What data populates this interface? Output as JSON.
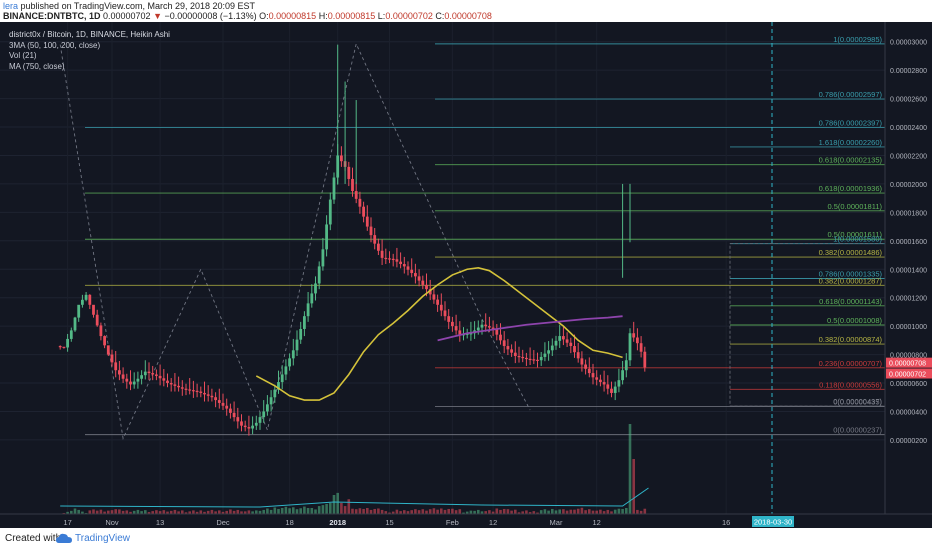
{
  "header": {
    "publisher": "lera",
    "published_text": "published on TradingView.com, March 29, 2018 20:09 EST",
    "symbol": "BINANCE:DNTBTC, 1D",
    "last": "0.00000702",
    "change_arrow": "▼",
    "change": "−0.00000008 (−1.13%)",
    "ohlc": [
      {
        "k": "O:",
        "v": "0.00000815"
      },
      {
        "k": "H:",
        "v": "0.00000815"
      },
      {
        "k": "L:",
        "v": "0.00000702"
      },
      {
        "k": "C:",
        "v": "0.00000708"
      }
    ]
  },
  "legend": {
    "title": "district0x / Bitcoin, 1D, BINANCE, Heikin Ashi",
    "lines": [
      "3MA (50, 100, 200, close)",
      "Vol (21)",
      "MA (750, close)"
    ]
  },
  "footer": {
    "created_with": "Created with",
    "brand": "TradingView"
  },
  "colors": {
    "background": "#131722",
    "up_candle": "#53b987",
    "down_candle": "#eb4d5c",
    "ma_yellow": "#d4c23a",
    "ma_purple": "#8e44ad",
    "fib_teal": "#3a9fae",
    "fib_green": "#5fb35b",
    "fib_yellow": "#b6b544",
    "fib_red": "#cc3b3b",
    "date_badge": "#2fb4c8"
  },
  "chart_data": {
    "type": "candlestick",
    "y_axis": {
      "ticks": [
        "0.00003000",
        "0.00002800",
        "0.00002600",
        "0.00002400",
        "0.00002200",
        "0.00002000",
        "0.00001800",
        "0.00001600",
        "0.00001400",
        "0.00001200",
        "0.00001000",
        "0.00000800",
        "0.00000600",
        "0.00000400",
        "0.00000200"
      ],
      "price_labels": [
        {
          "text": "0.00000708",
          "price": 7.08e-06,
          "color": "#eb4d5c"
        },
        {
          "text": "0.00000702",
          "price": 7.02e-06,
          "color": "#eb4d5c"
        }
      ]
    },
    "x_axis": {
      "ticks": [
        "17",
        "Nov",
        "13",
        "Dec",
        "18",
        "2018",
        "15",
        "Feb",
        "12",
        "Mar",
        "12",
        "16"
      ],
      "tick_days": [
        -12,
        0,
        13,
        30,
        48,
        61,
        75,
        92,
        103,
        120,
        131,
        166
      ],
      "date_badge": "2018-03-30"
    },
    "fib_levels": [
      {
        "label": "1(0.00002985)",
        "price": 2.985e-05,
        "group": "A"
      },
      {
        "label": "0.786(0.00002597)",
        "price": 2.597e-05,
        "group": "A"
      },
      {
        "label": "0.786(0.00002397)",
        "price": 2.397e-05,
        "group": "B"
      },
      {
        "label": "1.618(0.00002260)",
        "price": 2.26e-05,
        "group": "C"
      },
      {
        "label": "0.618(0.00002135)",
        "price": 2.135e-05,
        "group": "A"
      },
      {
        "label": "0.618(0.00001936)",
        "price": 1.936e-05,
        "group": "B"
      },
      {
        "label": "0.5(0.00001811)",
        "price": 1.811e-05,
        "group": "A"
      },
      {
        "label": "0.5(0.00001611)",
        "price": 1.611e-05,
        "group": "B"
      },
      {
        "label": "1(0.00001580)",
        "price": 1.58e-05,
        "group": "C"
      },
      {
        "label": "0.382(0.00001486)",
        "price": 1.486e-05,
        "group": "A"
      },
      {
        "label": "0.786(0.00001335)",
        "price": 1.335e-05,
        "group": "C"
      },
      {
        "label": "0.382(0.00001287)",
        "price": 1.287e-05,
        "group": "B"
      },
      {
        "label": "0.618(0.00001143)",
        "price": 1.143e-05,
        "group": "C"
      },
      {
        "label": "0.5(0.00001008)",
        "price": 1.008e-05,
        "group": "C"
      },
      {
        "label": "0.382(0.00000874)",
        "price": 8.74e-06,
        "group": "C"
      },
      {
        "label": "0.236(0.00000707)",
        "price": 7.07e-06,
        "group": "A"
      },
      {
        "label": "0.118(0.00000556)",
        "price": 5.56e-06,
        "group": "C"
      },
      {
        "label": "0(0.00000435)",
        "price": 4.35e-06,
        "group": "A"
      },
      {
        "label": "0(0.00000437)",
        "price": 4.37e-06,
        "group": "C"
      },
      {
        "label": "0(0.00000237)",
        "price": 2.37e-06,
        "group": "B"
      }
    ],
    "price_path": [
      [
        -14,
        8.6
      ],
      [
        -12,
        8.5
      ],
      [
        -10,
        9.7
      ],
      [
        -8,
        11.5
      ],
      [
        -6,
        12.2
      ],
      [
        -4,
        10.8
      ],
      [
        -2,
        9.3
      ],
      [
        0,
        8.0
      ],
      [
        2,
        6.9
      ],
      [
        4,
        6.3
      ],
      [
        6,
        5.9
      ],
      [
        8,
        6.3
      ],
      [
        10,
        6.8
      ],
      [
        13,
        6.5
      ],
      [
        16,
        6.0
      ],
      [
        20,
        5.6
      ],
      [
        24,
        5.4
      ],
      [
        28,
        5.0
      ],
      [
        30,
        4.6
      ],
      [
        32,
        4.2
      ],
      [
        34,
        3.6
      ],
      [
        36,
        3.0
      ],
      [
        38,
        2.8
      ],
      [
        40,
        3.2
      ],
      [
        42,
        4.0
      ],
      [
        44,
        5.0
      ],
      [
        47,
        6.6
      ],
      [
        50,
        8.3
      ],
      [
        52,
        9.8
      ],
      [
        54,
        11.6
      ],
      [
        56,
        13.0
      ],
      [
        58,
        15.4
      ],
      [
        60,
        18.9
      ],
      [
        62,
        22.0
      ],
      [
        64,
        21.2
      ],
      [
        66,
        19.5
      ],
      [
        68,
        18.4
      ],
      [
        70,
        17.0
      ],
      [
        72,
        15.8
      ],
      [
        74,
        14.8
      ],
      [
        77,
        14.7
      ],
      [
        80,
        14.2
      ],
      [
        83,
        13.5
      ],
      [
        86,
        12.6
      ],
      [
        89,
        11.5
      ],
      [
        92,
        10.3
      ],
      [
        95,
        9.4
      ],
      [
        98,
        9.5
      ],
      [
        101,
        10.1
      ],
      [
        104,
        9.8
      ],
      [
        107,
        8.6
      ],
      [
        110,
        7.9
      ],
      [
        113,
        7.7
      ],
      [
        116,
        7.6
      ],
      [
        119,
        8.3
      ],
      [
        122,
        9.3
      ],
      [
        125,
        8.6
      ],
      [
        128,
        7.3
      ],
      [
        131,
        6.4
      ],
      [
        134,
        5.9
      ],
      [
        136,
        5.3
      ],
      [
        138,
        6.2
      ],
      [
        140,
        7.6
      ],
      [
        141,
        9.5
      ],
      [
        142,
        9.2
      ],
      [
        143,
        8.8
      ],
      [
        144,
        8.2
      ],
      [
        145,
        7.1
      ]
    ],
    "ma_yellow": [
      [
        39,
        6.5
      ],
      [
        44,
        5.8
      ],
      [
        48,
        5.1
      ],
      [
        52,
        4.8
      ],
      [
        56,
        4.8
      ],
      [
        60,
        5.3
      ],
      [
        64,
        6.6
      ],
      [
        68,
        8.2
      ],
      [
        72,
        9.4
      ],
      [
        76,
        10.2
      ],
      [
        80,
        11.1
      ],
      [
        84,
        12.1
      ],
      [
        88,
        12.9
      ],
      [
        92,
        13.6
      ],
      [
        96,
        14.0
      ],
      [
        99,
        14.1
      ],
      [
        102,
        13.9
      ],
      [
        106,
        13.2
      ],
      [
        110,
        12.4
      ],
      [
        114,
        11.6
      ],
      [
        118,
        10.8
      ],
      [
        122,
        10.0
      ],
      [
        126,
        9.0
      ],
      [
        130,
        8.3
      ],
      [
        134,
        8.1
      ],
      [
        138,
        7.8
      ]
    ],
    "ma_purple": [
      [
        88,
        9.0
      ],
      [
        96,
        9.5
      ],
      [
        104,
        9.8
      ],
      [
        112,
        10.1
      ],
      [
        120,
        10.3
      ],
      [
        128,
        10.5
      ],
      [
        134,
        10.6
      ],
      [
        138,
        10.7
      ]
    ],
    "dashed_pattern": [
      [
        -14,
        29.8
      ],
      [
        3,
        2.1
      ],
      [
        24,
        14.0
      ],
      [
        42,
        2.7
      ],
      [
        66,
        29.85
      ],
      [
        100,
        10.5
      ],
      [
        113,
        4.1
      ]
    ]
  }
}
